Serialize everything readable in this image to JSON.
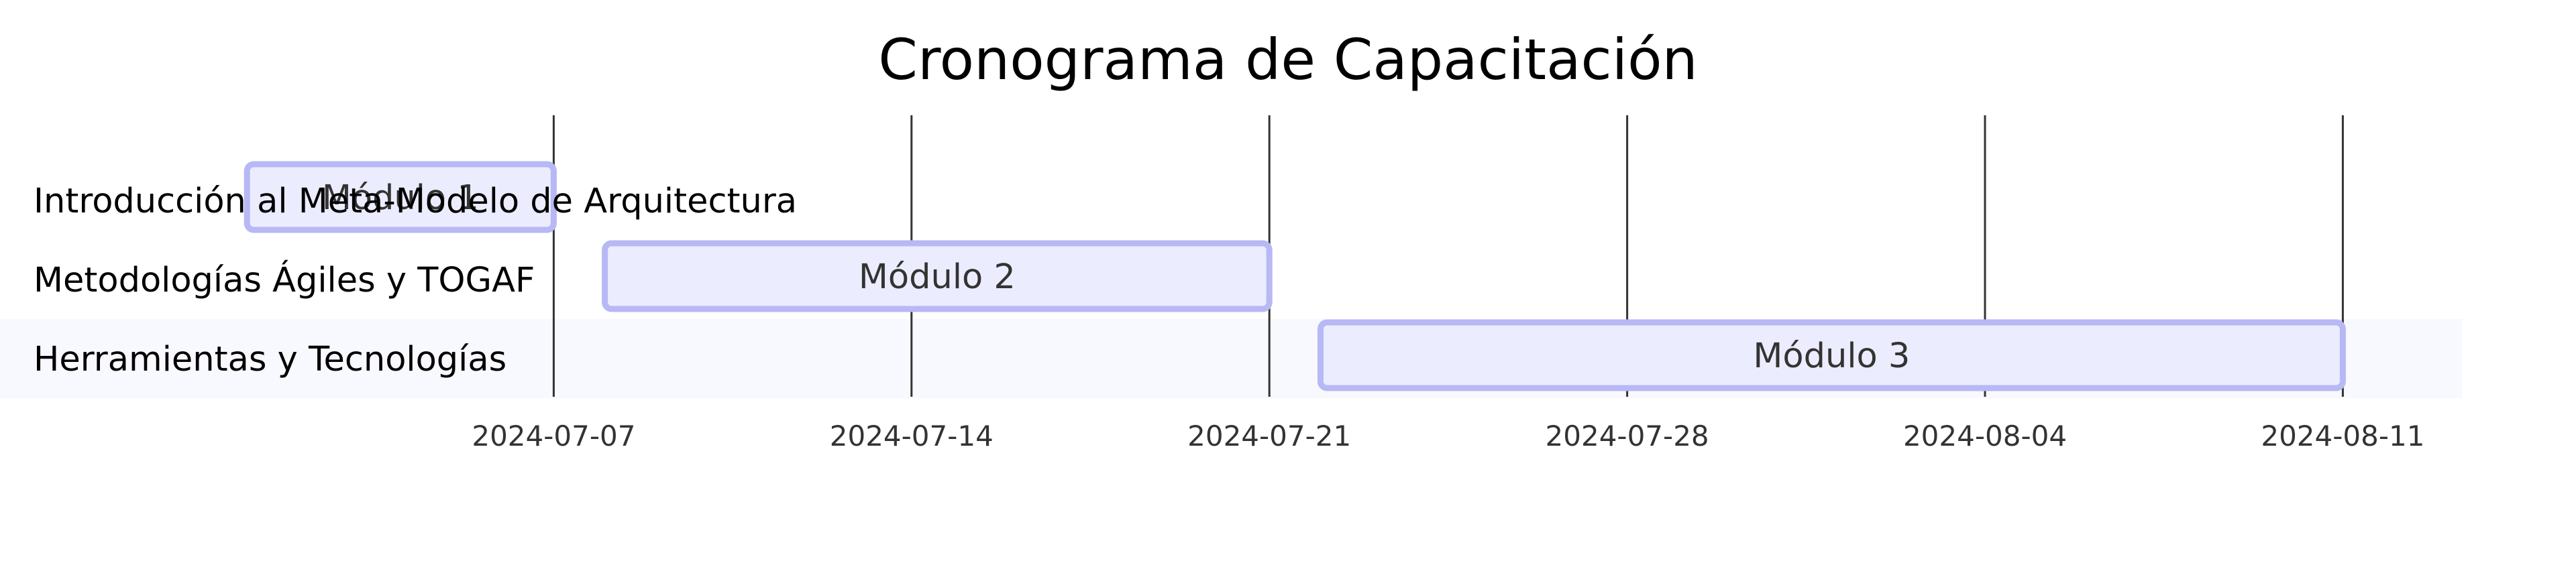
{
  "chart_data": {
    "type": "gantt",
    "title": "Cronograma de Capacitación",
    "date_format": "YYYY-MM-DD",
    "x_range": [
      "2024-06-30",
      "2024-08-13"
    ],
    "ticks": [
      "2024-07-07",
      "2024-07-14",
      "2024-07-21",
      "2024-07-28",
      "2024-08-04",
      "2024-08-11"
    ],
    "sections": [
      {
        "label": "Introducción al Meta-Modelo de Arquitectura",
        "task": "Módulo 1",
        "start": "2024-07-01",
        "end": "2024-07-07"
      },
      {
        "label": "Metodologías Ágiles y TOGAF",
        "task": "Módulo 2",
        "start": "2024-07-08",
        "end": "2024-07-21"
      },
      {
        "label": "Herramientas y Tecnologías",
        "task": "Módulo 3",
        "start": "2024-07-22",
        "end": "2024-08-11"
      }
    ],
    "colors": {
      "bar_fill": "#ECECFF",
      "bar_stroke": "#B7B8F4",
      "section_band_alt": "#F8F8FF",
      "grid": "#333333"
    }
  }
}
